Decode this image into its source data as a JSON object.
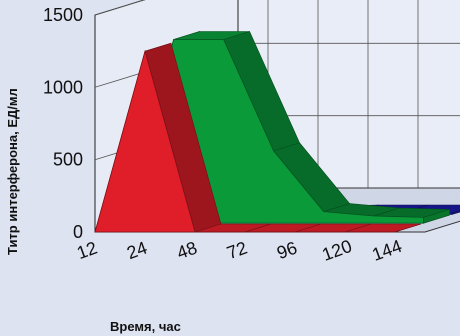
{
  "chart_data": {
    "type": "area",
    "view": "3d",
    "xlabel": "Время, час",
    "ylabel": "Титр  интерферона, ЕД/мл",
    "x": [
      "12",
      "24",
      "48",
      "72",
      "96",
      "120",
      "144"
    ],
    "y_ticks": [
      "0",
      "500",
      "1000",
      "1500"
    ],
    "ylim": [
      0,
      1500
    ],
    "grid": true,
    "series": [
      {
        "color": "#e01e2a",
        "values": [
          0,
          1250,
          0,
          0,
          0,
          0,
          0
        ]
      },
      {
        "color": "#0a9a3a",
        "values": [
          0,
          1270,
          1270,
          500,
          80,
          50,
          40
        ]
      },
      {
        "color": "#1a1aa0",
        "values": [
          0,
          0,
          0,
          0,
          10,
          10,
          10
        ]
      }
    ]
  }
}
